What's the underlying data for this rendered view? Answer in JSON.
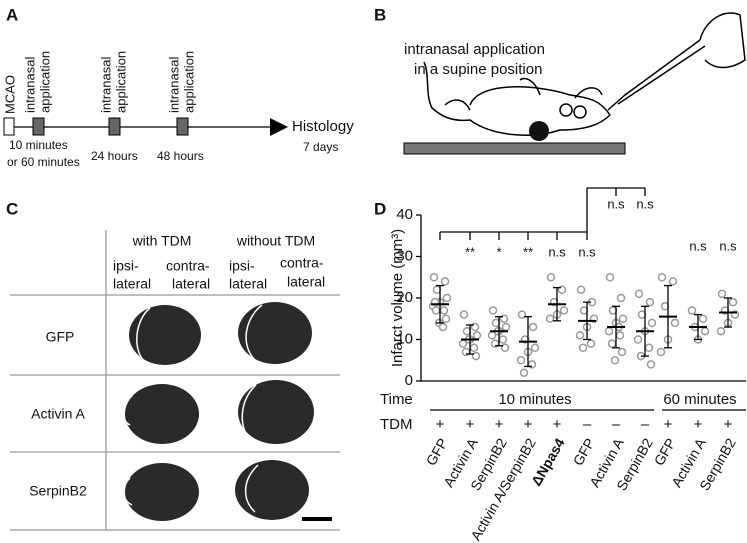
{
  "panel_a": {
    "label": "A",
    "start": "MCAO",
    "applications": [
      [
        "intranasal",
        "application"
      ],
      [
        "intranasal",
        "application"
      ],
      [
        "intranasal",
        "application"
      ]
    ],
    "times": [
      [
        "10 minutes",
        "or 60 minutes"
      ],
      [
        "24 hours"
      ],
      [
        "48 hours"
      ]
    ],
    "end": "Histology",
    "end_time": "7 days"
  },
  "panel_b": {
    "label": "B",
    "caption": [
      "intranasal application",
      "in a supine position"
    ]
  },
  "panel_c": {
    "label": "C",
    "headers": [
      "with TDM",
      "without TDM"
    ],
    "subheaders": [
      [
        "ipsi-",
        "lateral"
      ],
      [
        "contra-",
        "lateral"
      ],
      [
        "ipsi-",
        "lateral"
      ],
      [
        "contra-",
        "lateral"
      ]
    ],
    "rows": [
      "GFP",
      "Activin A",
      "SerpinB2"
    ]
  },
  "panel_d": {
    "label": "D",
    "y_label": "Infarct volume (mm³)",
    "ylim": [
      0,
      40
    ],
    "yticks": [
      0,
      10,
      20,
      30,
      40
    ],
    "row_labels": [
      "Time",
      "TDM"
    ],
    "time_labels": [
      "10 minutes",
      "60 minutes"
    ],
    "groups": [
      {
        "name": "GFP",
        "tdm": "+",
        "mean": 18.5,
        "sd": 4.5,
        "points": [
          25,
          24,
          22,
          20,
          19,
          18,
          17,
          17,
          15,
          14,
          13,
          19
        ]
      },
      {
        "name": "Activin A",
        "tdm": "+",
        "mean": 10,
        "sd": 3.5,
        "sig": "**",
        "points": [
          16,
          13,
          12,
          11,
          10,
          9,
          8,
          7,
          6,
          10
        ]
      },
      {
        "name": "SerpinB2",
        "tdm": "+",
        "mean": 12,
        "sd": 3.5,
        "sig": "*",
        "points": [
          17,
          15,
          14,
          13,
          12,
          11,
          10,
          9,
          8,
          12
        ]
      },
      {
        "name": "Activin A/SerpinB2",
        "tdm": "+",
        "mean": 9.5,
        "sd": 6,
        "sig": "**",
        "points": [
          16,
          13,
          10,
          8,
          7,
          5,
          4,
          2
        ]
      },
      {
        "name": "ΔNpas4",
        "tdm": "+",
        "mean": 18.5,
        "sd": 4,
        "sig": "n.s",
        "points": [
          25,
          22,
          19,
          17,
          16,
          15
        ]
      },
      {
        "name": "GFP",
        "tdm": "–",
        "mean": 14.5,
        "sd": 4.5,
        "sig": "n.s",
        "points": [
          22,
          19,
          17,
          15,
          13,
          11,
          9,
          8
        ]
      },
      {
        "name": "Activin A",
        "tdm": "–",
        "mean": 13,
        "sd": 5,
        "sig": "n.s",
        "points": [
          25,
          20,
          17,
          15,
          14,
          12,
          11,
          9,
          7,
          5,
          13
        ]
      },
      {
        "name": "SerpinB2",
        "tdm": "–",
        "mean": 12,
        "sd": 6,
        "sig": "n.s",
        "points": [
          21,
          19,
          16,
          14,
          12,
          10,
          8,
          6,
          4
        ]
      },
      {
        "name": "GFP",
        "tdm": "+",
        "mean": 15.5,
        "sd": 7.5,
        "points": [
          25,
          24,
          18,
          14,
          10,
          7
        ]
      },
      {
        "name": "Activin A",
        "tdm": "+",
        "mean": 13,
        "sd": 3,
        "sig": "n.s",
        "points": [
          17,
          15,
          13,
          12,
          10
        ]
      },
      {
        "name": "SerpinB2",
        "tdm": "+",
        "mean": 16.5,
        "sd": 3.5,
        "sig": "n.s",
        "points": [
          21,
          19,
          17,
          16,
          14,
          12
        ]
      }
    ]
  }
}
